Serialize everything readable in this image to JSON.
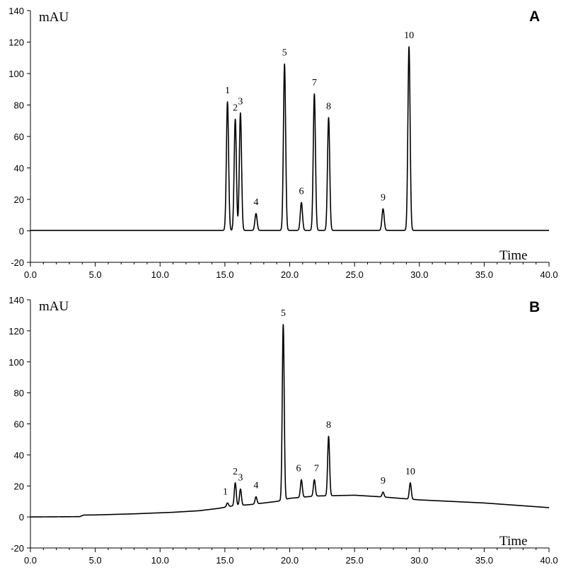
{
  "chart_data": [
    {
      "type": "line",
      "panel": "A",
      "ylabel": "mAU",
      "xlabel": "Time",
      "xlim": [
        0,
        40
      ],
      "ylim": [
        -20,
        140
      ],
      "x_ticks": [
        "0.0",
        "5.0",
        "10.0",
        "15.0",
        "20.0",
        "25.0",
        "30.0",
        "35.0",
        "40.0"
      ],
      "y_ticks": [
        "-20",
        "0",
        "20",
        "40",
        "60",
        "80",
        "100",
        "120",
        "140"
      ],
      "baseline": [
        [
          0,
          0.3
        ],
        [
          40,
          0.3
        ]
      ],
      "peaks": [
        {
          "label": "1",
          "x": 15.2,
          "y": 82
        },
        {
          "label": "2",
          "x": 15.8,
          "y": 71
        },
        {
          "label": "3",
          "x": 16.2,
          "y": 75
        },
        {
          "label": "4",
          "x": 17.4,
          "y": 11
        },
        {
          "label": "5",
          "x": 19.6,
          "y": 106
        },
        {
          "label": "6",
          "x": 20.9,
          "y": 18
        },
        {
          "label": "7",
          "x": 21.9,
          "y": 87
        },
        {
          "label": "8",
          "x": 23.0,
          "y": 72
        },
        {
          "label": "9",
          "x": 27.2,
          "y": 14
        },
        {
          "label": "10",
          "x": 29.2,
          "y": 117
        }
      ]
    },
    {
      "type": "line",
      "panel": "B",
      "ylabel": "mAU",
      "xlabel": "Time",
      "xlim": [
        0,
        40
      ],
      "ylim": [
        -20,
        140
      ],
      "x_ticks": [
        "0.0",
        "5.0",
        "10.0",
        "15.0",
        "20.0",
        "25.0",
        "30.0",
        "35.0",
        "40.0"
      ],
      "y_ticks": [
        "-20",
        "0",
        "20",
        "40",
        "60",
        "80",
        "100",
        "120",
        "140"
      ],
      "baseline": [
        [
          0,
          0
        ],
        [
          3.8,
          0.2
        ],
        [
          4.1,
          1.2
        ],
        [
          5,
          1.3
        ],
        [
          8,
          2
        ],
        [
          11,
          3
        ],
        [
          13,
          4
        ],
        [
          14.5,
          5.5
        ],
        [
          15.5,
          7
        ],
        [
          17,
          8
        ],
        [
          19,
          10
        ],
        [
          20,
          12
        ],
        [
          22,
          13.5
        ],
        [
          25,
          14
        ],
        [
          27,
          13
        ],
        [
          30,
          11
        ],
        [
          35,
          9
        ],
        [
          40,
          6
        ]
      ],
      "peaks": [
        {
          "label": "1",
          "x": 15.2,
          "y": 9
        },
        {
          "label": "2",
          "x": 15.8,
          "y": 22
        },
        {
          "label": "3",
          "x": 16.2,
          "y": 18
        },
        {
          "label": "4",
          "x": 17.4,
          "y": 13
        },
        {
          "label": "5",
          "x": 19.5,
          "y": 124
        },
        {
          "label": "6",
          "x": 20.9,
          "y": 24
        },
        {
          "label": "7",
          "x": 21.9,
          "y": 24
        },
        {
          "label": "8",
          "x": 23.0,
          "y": 52
        },
        {
          "label": "9",
          "x": 27.2,
          "y": 16
        },
        {
          "label": "10",
          "x": 29.3,
          "y": 22
        }
      ]
    }
  ]
}
